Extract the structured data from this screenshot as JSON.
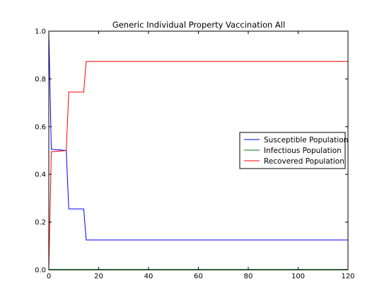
{
  "chart_data": {
    "type": "line",
    "title": "Generic Individual Property Vaccination All",
    "xlabel": "",
    "ylabel": "",
    "xlim": [
      0,
      120
    ],
    "ylim": [
      0.0,
      1.0
    ],
    "xticks": [
      0,
      20,
      40,
      60,
      80,
      100,
      120
    ],
    "xtick_labels": [
      "0",
      "20",
      "40",
      "60",
      "80",
      "100",
      "120"
    ],
    "yticks": [
      0.0,
      0.2,
      0.4,
      0.6,
      0.8,
      1.0
    ],
    "ytick_labels": [
      "0.0",
      "0.2",
      "0.4",
      "0.6",
      "0.8",
      "1.0"
    ],
    "grid": false,
    "legend_position": "center-right",
    "series": [
      {
        "name": "Susceptible Population",
        "color": "#0000ff",
        "x": [
          0,
          1,
          7,
          8,
          14,
          15,
          120
        ],
        "y": [
          1.0,
          0.505,
          0.5,
          0.255,
          0.255,
          0.125,
          0.125
        ]
      },
      {
        "name": "Infectious Population",
        "color": "#008000",
        "x": [
          0,
          1,
          7,
          8,
          14,
          15,
          120
        ],
        "y": [
          0.002,
          0.002,
          0.002,
          0.002,
          0.002,
          0.002,
          0.002
        ]
      },
      {
        "name": "Recovered Population",
        "color": "#ff0000",
        "x": [
          0,
          1,
          7,
          8,
          14,
          15,
          120
        ],
        "y": [
          0.0,
          0.495,
          0.5,
          0.745,
          0.745,
          0.873,
          0.873
        ]
      }
    ]
  }
}
